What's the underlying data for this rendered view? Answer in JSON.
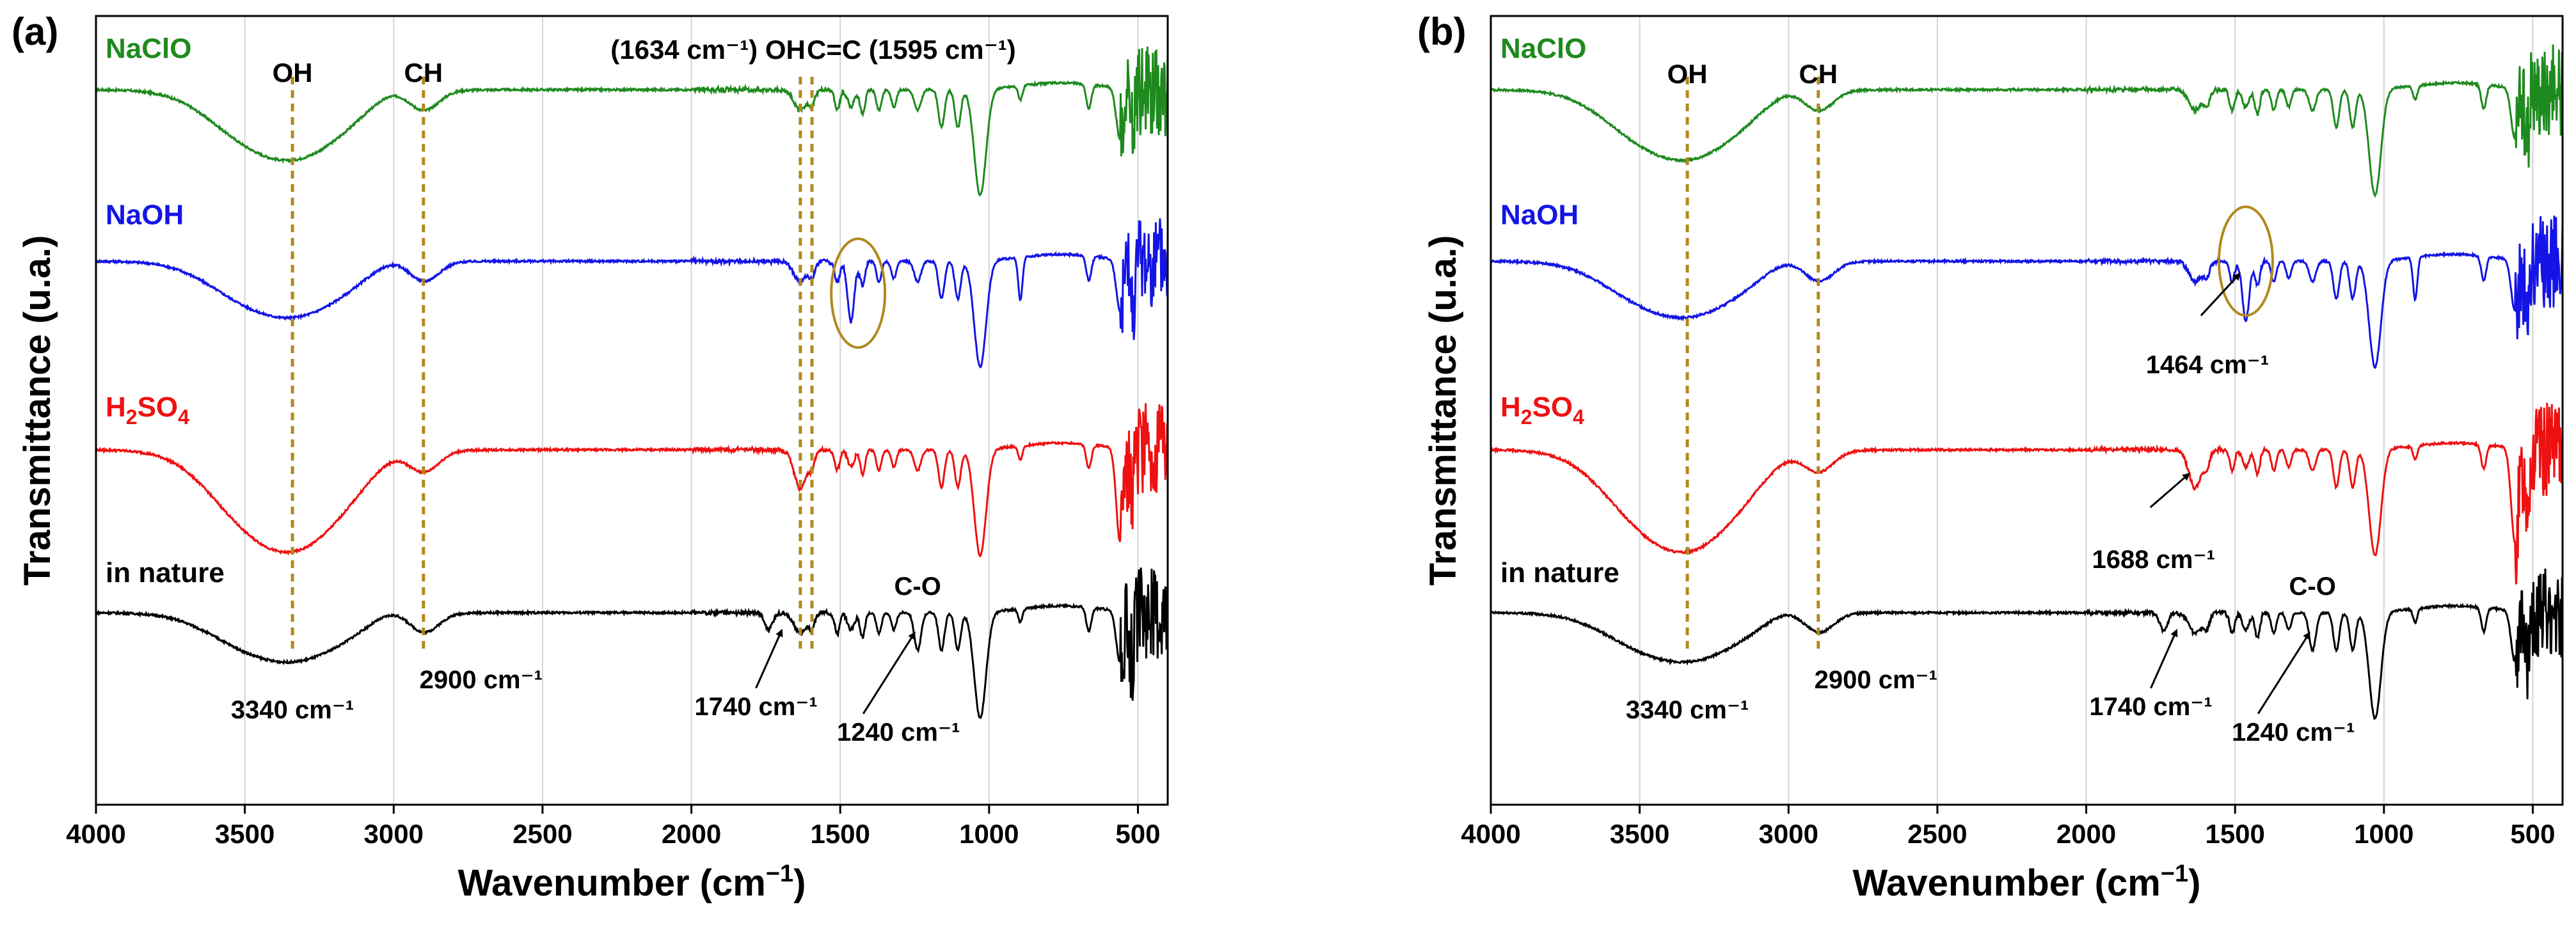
{
  "chart_data": [
    {
      "panel": "(a)",
      "type": "line",
      "xlabel_main": "Wavenumber (cm",
      "xlabel_exp": "−1",
      "xlabel_close": ")",
      "ylabel": "Transmittance (u.a.)",
      "xlim": [
        4000,
        400
      ],
      "xticks": [
        4000,
        3500,
        3000,
        2500,
        2000,
        1500,
        1000,
        500
      ],
      "series": [
        {
          "name": "NaClO",
          "color": "#1e8a1e",
          "offset": 3.05
        },
        {
          "name": "NaOH",
          "color": "#1414e6",
          "offset": 2.05
        },
        {
          "name": "H2SO4",
          "color": "#ee1111",
          "offset": 0.95
        },
        {
          "name": "in nature",
          "color": "#000000",
          "offset": 0.0
        }
      ],
      "reference_lines": [
        3340,
        2900,
        1634,
        1595
      ],
      "peak_labels": [
        {
          "text": "OH",
          "x": 3340
        },
        {
          "text": "CH",
          "x": 2900
        },
        {
          "text": "(1634 cm⁻¹) OH",
          "x": 1634
        },
        {
          "text": "C=C (1595 cm⁻¹)",
          "x": 1595
        }
      ],
      "annotations": [
        {
          "text": "3340 cm⁻¹",
          "x": 3340
        },
        {
          "text": "2900 cm⁻¹",
          "x": 2900
        },
        {
          "text": "1740 cm⁻¹",
          "x": 1740
        },
        {
          "text": "1240 cm⁻¹",
          "x": 1240
        },
        {
          "text": "C-O",
          "x": 1240
        }
      ],
      "highlight_ellipse_x": 1440
    },
    {
      "panel": "(b)",
      "type": "line",
      "xlabel_main": "Wavenumber (cm",
      "xlabel_exp": "−1",
      "xlabel_close": ")",
      "ylabel": "Transmittance (u.a.)",
      "xlim": [
        4000,
        400
      ],
      "xticks": [
        4000,
        3500,
        3000,
        2500,
        2000,
        1500,
        1000,
        500
      ],
      "series": [
        {
          "name": "NaClO",
          "color": "#1e8a1e",
          "offset": 3.05
        },
        {
          "name": "NaOH",
          "color": "#1414e6",
          "offset": 2.05
        },
        {
          "name": "H2SO4",
          "color": "#ee1111",
          "offset": 0.95
        },
        {
          "name": "in nature",
          "color": "#000000",
          "offset": 0.0
        }
      ],
      "reference_lines": [
        3340,
        2900
      ],
      "peak_labels": [
        {
          "text": "OH",
          "x": 3340
        },
        {
          "text": "CH",
          "x": 2900
        }
      ],
      "annotations": [
        {
          "text": "3340 cm⁻¹",
          "x": 3340
        },
        {
          "text": "2900 cm⁻¹",
          "x": 2900
        },
        {
          "text": "1740 cm⁻¹",
          "x": 1740
        },
        {
          "text": "1240 cm⁻¹",
          "x": 1240
        },
        {
          "text": "C-O",
          "x": 1240
        },
        {
          "text": "1464 cm⁻¹",
          "x": 1464
        },
        {
          "text": "1688 cm⁻¹",
          "x": 1688
        }
      ],
      "highlight_ellipse_x": 1464
    }
  ]
}
